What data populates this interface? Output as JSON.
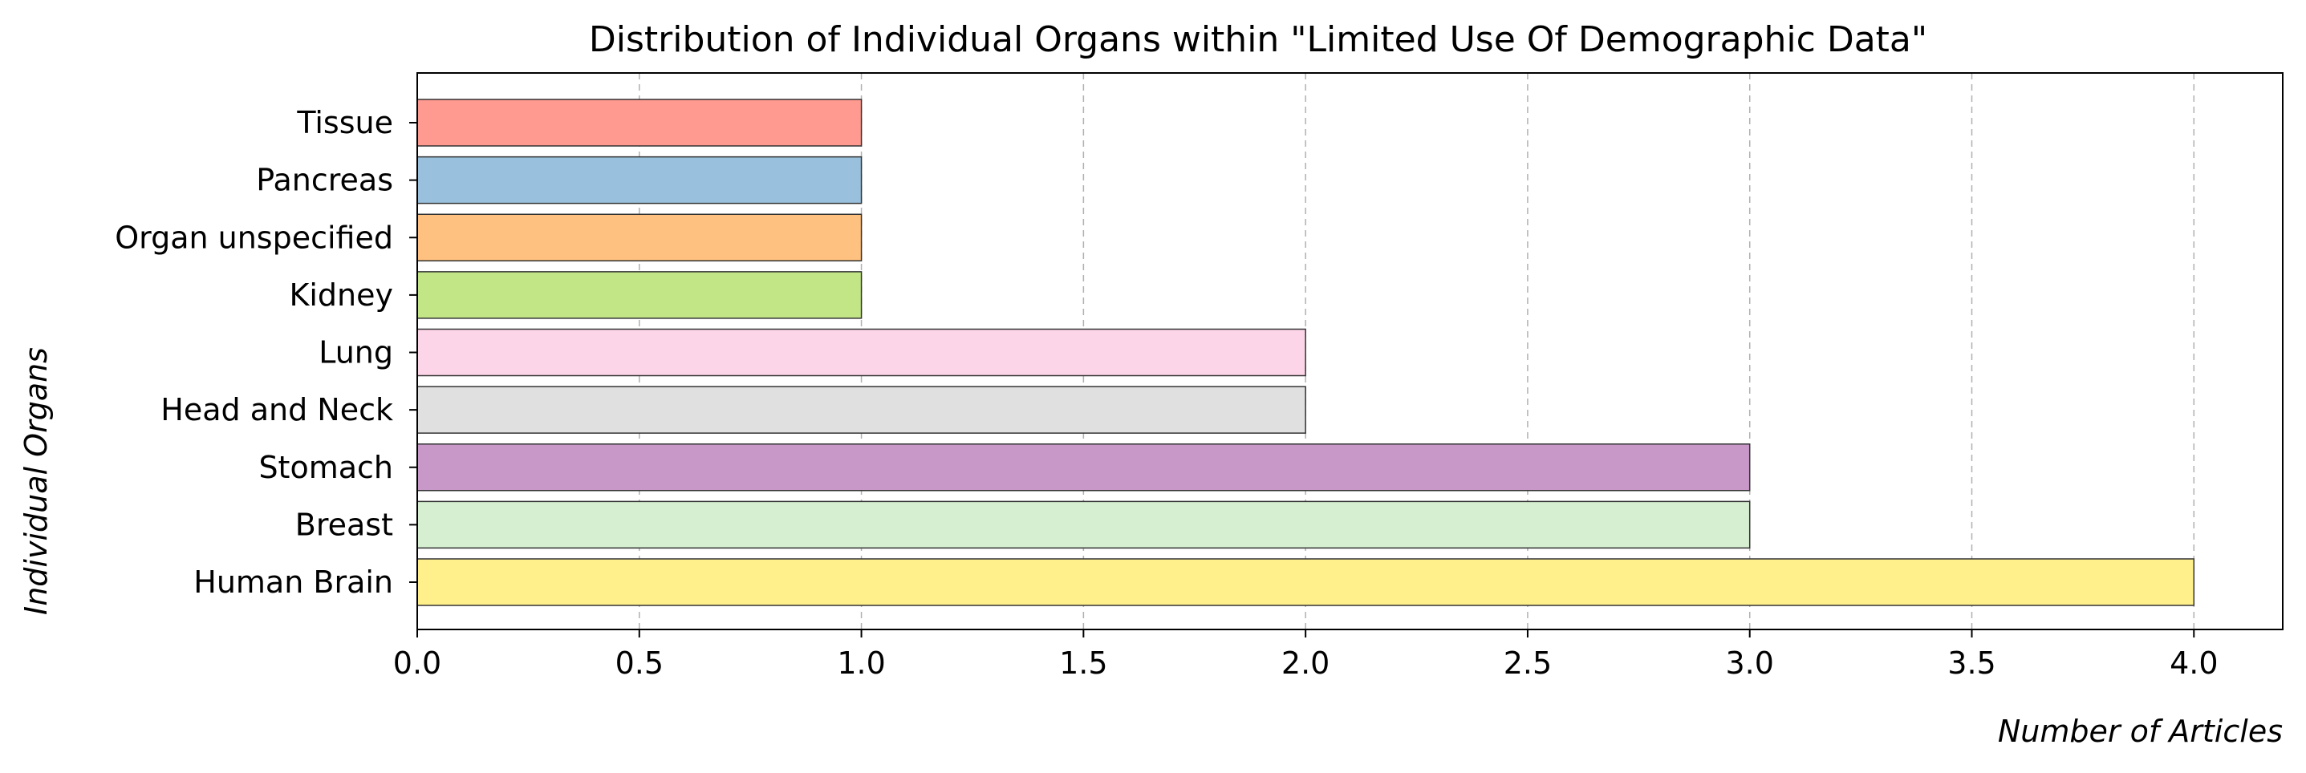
{
  "chart_data": {
    "type": "bar",
    "orientation": "horizontal",
    "title": "Distribution of Individual Organs within \"Limited Use Of Demographic Data\"",
    "xlabel": "Number of Articles",
    "ylabel": "Individual Organs",
    "categories": [
      "Human Brain",
      "Breast",
      "Stomach",
      "Head and Neck",
      "Lung",
      "Kidney",
      "Organ unspecified",
      "Pancreas",
      "Tissue"
    ],
    "values": [
      4,
      3,
      3,
      2,
      2,
      1,
      1,
      1,
      1
    ],
    "colors": [
      "#fff08c",
      "#d6efd0",
      "#c898c8",
      "#e0e0e0",
      "#fcd5e8",
      "#c2e685",
      "#fec17f",
      "#99c0dc",
      "#fe9a90"
    ],
    "edge_color": "#333333",
    "xlim": [
      0,
      4.2
    ],
    "xticks": [
      0.0,
      0.5,
      1.0,
      1.5,
      2.0,
      2.5,
      3.0,
      3.5,
      4.0
    ],
    "xtick_labels": [
      "0.0",
      "0.5",
      "1.0",
      "1.5",
      "2.0",
      "2.5",
      "3.0",
      "3.5",
      "4.0"
    ],
    "grid": {
      "x": true,
      "y": false,
      "style": "dashed"
    },
    "legend": "none"
  }
}
